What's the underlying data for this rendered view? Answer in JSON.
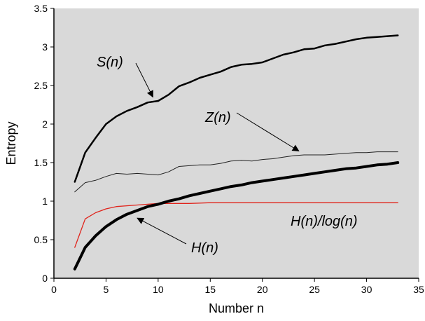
{
  "chart_data": {
    "type": "line",
    "xlabel": "Number n",
    "ylabel": "Entropy",
    "xlim": [
      0,
      35
    ],
    "ylim": [
      0,
      3.5
    ],
    "xticks": [
      "0",
      "5",
      "10",
      "15",
      "20",
      "25",
      "30",
      "35"
    ],
    "yticks": [
      "0",
      "0.5",
      "1",
      "1.5",
      "2",
      "2.5",
      "3",
      "3.5"
    ],
    "grid": false,
    "background": "#d9d9d9",
    "series": [
      {
        "name": "S(n)",
        "color": "#000000",
        "values": [
          [
            2,
            1.25
          ],
          [
            3,
            1.63
          ],
          [
            4,
            1.82
          ],
          [
            5,
            2.0
          ],
          [
            6,
            2.1
          ],
          [
            7,
            2.17
          ],
          [
            8,
            2.22
          ],
          [
            9,
            2.28
          ],
          [
            10,
            2.3
          ],
          [
            11,
            2.38
          ],
          [
            12,
            2.49
          ],
          [
            13,
            2.54
          ],
          [
            14,
            2.6
          ],
          [
            15,
            2.64
          ],
          [
            16,
            2.68
          ],
          [
            17,
            2.74
          ],
          [
            18,
            2.77
          ],
          [
            19,
            2.78
          ],
          [
            20,
            2.8
          ],
          [
            21,
            2.85
          ],
          [
            22,
            2.9
          ],
          [
            23,
            2.93
          ],
          [
            24,
            2.97
          ],
          [
            25,
            2.98
          ],
          [
            26,
            3.02
          ],
          [
            27,
            3.04
          ],
          [
            28,
            3.07
          ],
          [
            29,
            3.1
          ],
          [
            30,
            3.12
          ],
          [
            31,
            3.13
          ],
          [
            32,
            3.14
          ],
          [
            33,
            3.15
          ]
        ]
      },
      {
        "name": "Z(n)",
        "color": "#222222",
        "values": [
          [
            2,
            1.12
          ],
          [
            3,
            1.24
          ],
          [
            4,
            1.27
          ],
          [
            5,
            1.32
          ],
          [
            6,
            1.36
          ],
          [
            7,
            1.35
          ],
          [
            8,
            1.36
          ],
          [
            9,
            1.35
          ],
          [
            10,
            1.34
          ],
          [
            11,
            1.38
          ],
          [
            12,
            1.45
          ],
          [
            13,
            1.46
          ],
          [
            14,
            1.47
          ],
          [
            15,
            1.47
          ],
          [
            16,
            1.49
          ],
          [
            17,
            1.52
          ],
          [
            18,
            1.53
          ],
          [
            19,
            1.52
          ],
          [
            20,
            1.54
          ],
          [
            21,
            1.55
          ],
          [
            22,
            1.57
          ],
          [
            23,
            1.59
          ],
          [
            24,
            1.6
          ],
          [
            25,
            1.6
          ],
          [
            26,
            1.6
          ],
          [
            27,
            1.61
          ],
          [
            28,
            1.62
          ],
          [
            29,
            1.63
          ],
          [
            30,
            1.63
          ],
          [
            31,
            1.64
          ],
          [
            32,
            1.64
          ],
          [
            33,
            1.64
          ]
        ]
      },
      {
        "name": "H(n)/log(n)",
        "color": "#e0231b",
        "values": [
          [
            2,
            0.4
          ],
          [
            3,
            0.77
          ],
          [
            4,
            0.85
          ],
          [
            5,
            0.9
          ],
          [
            6,
            0.93
          ],
          [
            7,
            0.94
          ],
          [
            8,
            0.95
          ],
          [
            9,
            0.96
          ],
          [
            10,
            0.97
          ],
          [
            11,
            0.97
          ],
          [
            12,
            0.97
          ],
          [
            13,
            0.97
          ],
          [
            15,
            0.98
          ],
          [
            17,
            0.98
          ],
          [
            20,
            0.98
          ],
          [
            25,
            0.98
          ],
          [
            30,
            0.98
          ],
          [
            33,
            0.98
          ]
        ]
      },
      {
        "name": "H(n)",
        "color": "#000000",
        "values": [
          [
            2,
            0.12
          ],
          [
            3,
            0.4
          ],
          [
            4,
            0.55
          ],
          [
            5,
            0.67
          ],
          [
            6,
            0.76
          ],
          [
            7,
            0.83
          ],
          [
            8,
            0.88
          ],
          [
            9,
            0.93
          ],
          [
            10,
            0.96
          ],
          [
            11,
            1.0
          ],
          [
            12,
            1.03
          ],
          [
            13,
            1.07
          ],
          [
            14,
            1.1
          ],
          [
            15,
            1.13
          ],
          [
            16,
            1.16
          ],
          [
            17,
            1.19
          ],
          [
            18,
            1.21
          ],
          [
            19,
            1.24
          ],
          [
            20,
            1.26
          ],
          [
            21,
            1.28
          ],
          [
            22,
            1.3
          ],
          [
            23,
            1.32
          ],
          [
            24,
            1.34
          ],
          [
            25,
            1.36
          ],
          [
            26,
            1.38
          ],
          [
            27,
            1.4
          ],
          [
            28,
            1.42
          ],
          [
            29,
            1.43
          ],
          [
            30,
            1.45
          ],
          [
            31,
            1.47
          ],
          [
            32,
            1.48
          ],
          [
            33,
            1.5
          ]
        ]
      }
    ],
    "annotations": [
      {
        "text": "S(n)",
        "target": [
          9.5,
          2.35
        ]
      },
      {
        "text": "Z(n)",
        "target": [
          23.5,
          1.65
        ]
      },
      {
        "text": "H(n)/log(n)"
      },
      {
        "text": "H(n)",
        "target": [
          8,
          0.78
        ]
      }
    ]
  }
}
